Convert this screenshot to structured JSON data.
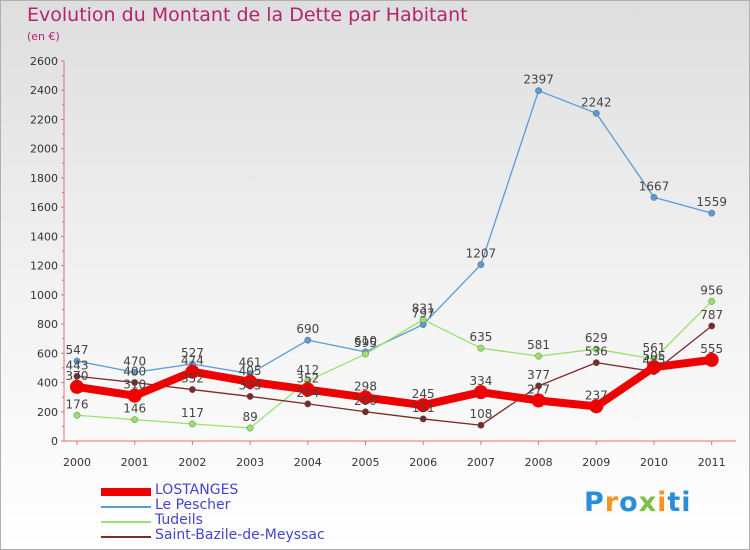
{
  "header": {
    "title": "Evolution du Montant de la Dette par Habitant",
    "subtitle": "(en €)"
  },
  "logo": {
    "text": "Proxiti",
    "colors": [
      "#2a8fd8",
      "#f7941d",
      "#2a8fd8",
      "#7cc242",
      "#f7941d",
      "#2a8fd8",
      "#2a8fd8"
    ]
  },
  "chart_data": {
    "type": "line",
    "title": "Evolution du Montant de la Dette par Habitant",
    "ylabel": "(en €)",
    "xlabel": "",
    "x": [
      "2000",
      "2001",
      "2002",
      "2003",
      "2004",
      "2005",
      "2006",
      "2007",
      "2008",
      "2009",
      "2010",
      "2011"
    ],
    "ylim": [
      0,
      2600
    ],
    "yticks": [
      "0",
      "200",
      "400",
      "600",
      "800",
      "1000",
      "1200",
      "1400",
      "1600",
      "1800",
      "2000",
      "2200",
      "2400",
      "2600"
    ],
    "grid": false,
    "legend_position": "bottom-left",
    "series": [
      {
        "name": "LOSTANGES",
        "color": "#ee0000",
        "values": [
          370,
          310,
          474,
          405,
          352,
          298,
          245,
          334,
          277,
          237,
          505,
          555
        ]
      },
      {
        "name": "Le Pescher",
        "color": "#5b9bd5",
        "values": [
          547,
          470,
          527,
          461,
          690,
          610,
          797,
          1207,
          2397,
          2242,
          1667,
          1559
        ]
      },
      {
        "name": "Tudeils",
        "color": "#99e26a",
        "values": [
          176,
          146,
          117,
          89,
          412,
          595,
          831,
          635,
          581,
          629,
          561,
          956
        ]
      },
      {
        "name": "Saint-Bazile-de-Meyssac",
        "color": "#7a2a2a",
        "values": [
          443,
          400,
          352,
          305,
          254,
          200,
          151,
          108,
          377,
          536,
          475,
          787
        ]
      }
    ]
  }
}
